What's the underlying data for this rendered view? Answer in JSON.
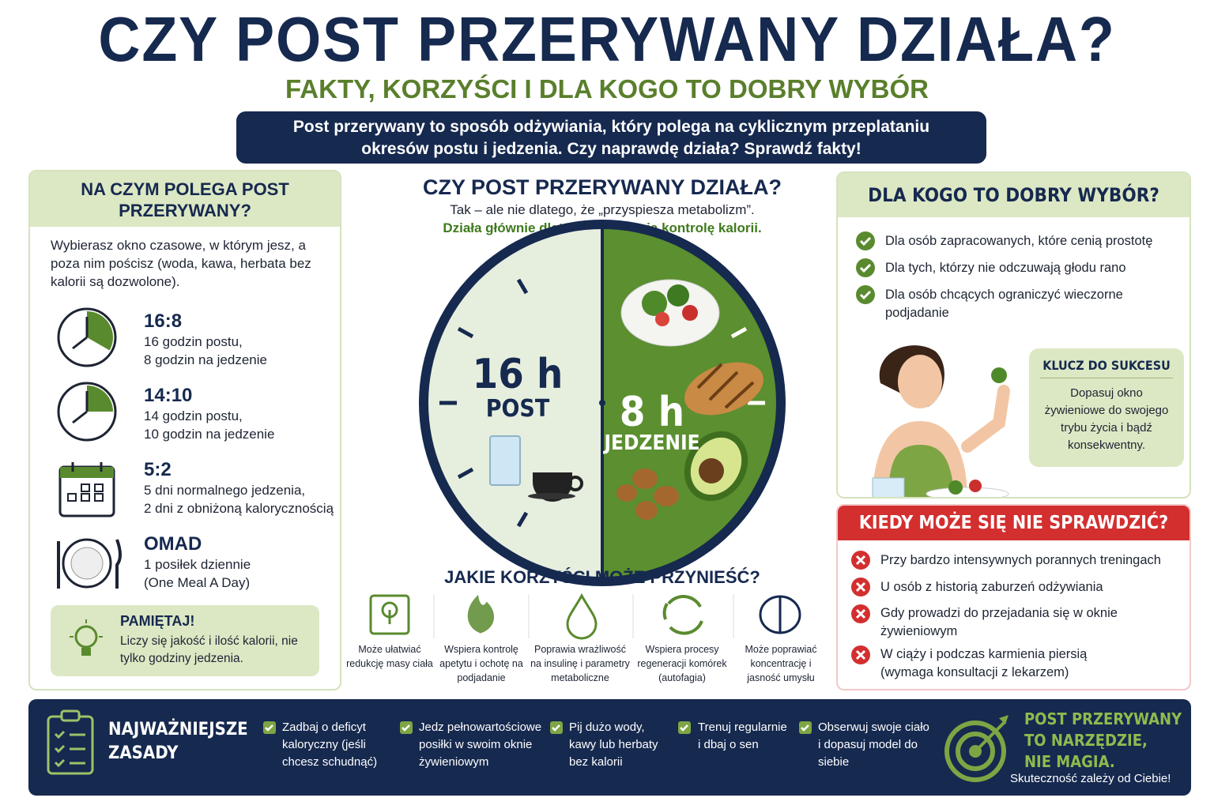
{
  "header": {
    "title": "CZY POST PRZERYWANY DZIAŁA?",
    "subtitle": "FAKTY, KORZYŚCI I DLA KOGO TO DOBRY WYBÓR",
    "intro": "Post przerywany to sposób odżywiania, który polega na cyklicznym przeplataniu okresów postu i jedzenia. Czy naprawdę działa? Sprawdź fakty!"
  },
  "left_panel": {
    "title": "NA CZYM POLEGA POST PRZERYWANY?",
    "description": "Wybierasz okno czasowe, w którym jesz, a poza nim pościsz (woda, kawa, herbata bez kalorii są dozwolone).",
    "methods": [
      {
        "name": "16:8",
        "lines": [
          "16 godzin postu,",
          "8 godzin na jedzenie"
        ]
      },
      {
        "name": "14:10",
        "lines": [
          "14 godzin postu,",
          "10 godzin na jedzenie"
        ]
      },
      {
        "name": "5:2",
        "lines": [
          "5 dni normalnego jedzenia,",
          "2 dni z obniżoną kalorycznością"
        ]
      },
      {
        "name": "OMAD",
        "lines": [
          "1 posiłek dziennie",
          "(One Meal A Day)"
        ]
      }
    ],
    "note": {
      "title": "PAMIĘTAJ!",
      "text": "Liczy się jakość i ilość kalorii, nie tylko godziny jedzenia."
    }
  },
  "center": {
    "title": "CZY POST PRZERYWANY DZIAŁA?",
    "line1": "Tak – ale nie dlatego, że „przyspiesza metabolizm”.",
    "line2": "Działa głównie dlatego, że ułatwia kontrolę kalorii.",
    "clock": {
      "fast_hours": "16 h",
      "fast_label": "POST",
      "eat_hours": "8 h",
      "eat_label": "JEDZENIE"
    },
    "benefits_title": "JAKIE KORZYŚCI MOŻE PRZYNIEŚĆ?",
    "benefits": [
      "Może ułatwiać redukcję masy ciała",
      "Wspiera kontrolę apetytu i ochotę na podjadanie",
      "Poprawia wrażliwość na insulinę i parametry metaboliczne",
      "Wspiera procesy regeneracji komórek (autofagia)",
      "Może poprawiać koncentrację i jasność umysłu"
    ]
  },
  "right_top": {
    "title": "DLA KOGO TO DOBRY WYBÓR?",
    "items": [
      "Dla osób zapracowanych, które cenią prostotę",
      "Dla tych, którzy nie odczuwają głodu rano",
      "Dla osób chcących ograniczyć wieczorne podjadanie"
    ],
    "key": {
      "title": "KLUCZ DO SUKCESU",
      "text": "Dopasuj okno żywieniowe do swojego trybu życia i bądź konsekwentny."
    }
  },
  "right_bottom": {
    "title": "KIEDY MOŻE SIĘ NIE SPRAWDZIĆ?",
    "items": [
      "Przy bardzo intensywnych porannych treningach",
      "U osób z historią zaburzeń odżywiania",
      "Gdy prowadzi do przejadania się w oknie żywieniowym",
      "W ciąży i podczas karmienia piersią (wymaga konsultacji z lekarzem)"
    ]
  },
  "footer": {
    "title": "NAJWAŻNIEJSZE ZASADY",
    "rules": [
      "Zadbaj o deficyt kaloryczny (jeśli chcesz schudnąć)",
      "Jedz pełnowartościowe posiłki w swoim oknie żywieniowym",
      "Pij dużo wody, kawy lub herbaty bez kalorii",
      "Trenuj regularnie i dbaj o sen",
      "Obserwuj swoje ciało i dopasuj model do siebie"
    ],
    "slogan_lines": [
      "POST PRZERYWANY",
      "TO NARZĘDZIE,",
      "NIE MAGIA."
    ],
    "tagline": "Skuteczność zależy od Ciebie!"
  }
}
